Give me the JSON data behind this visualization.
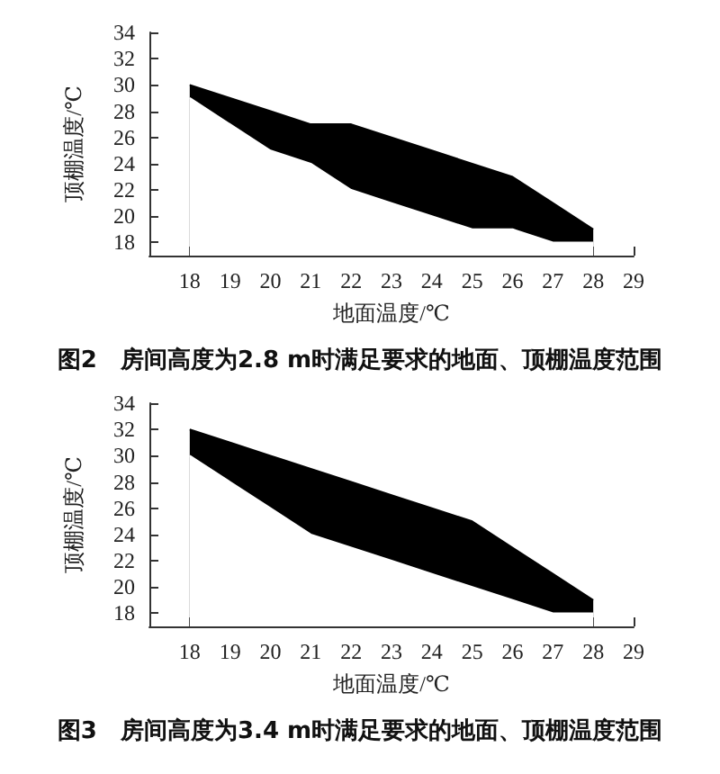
{
  "chart_data": [
    {
      "type": "area",
      "title": "图2　房间高度为2.8 m时满足要求的地面、顶棚温度范围",
      "xlabel": "地面温度/℃",
      "ylabel": "顶棚温度/℃",
      "x": [
        18,
        19,
        20,
        21,
        22,
        23,
        24,
        25,
        26,
        27,
        28
      ],
      "xlim": [
        17,
        29
      ],
      "xticks": [
        18,
        19,
        20,
        21,
        22,
        23,
        24,
        25,
        26,
        27,
        28,
        29
      ],
      "ylim": [
        17,
        34
      ],
      "yticks": [
        18,
        20,
        22,
        24,
        26,
        28,
        30,
        32,
        34
      ],
      "grid": false,
      "series": [
        {
          "color": "#000000",
          "values": [
            30,
            29,
            28,
            27,
            27,
            26,
            25,
            24,
            23,
            21,
            19
          ]
        },
        {
          "color": "#ffffff",
          "values": [
            29,
            27,
            25,
            24,
            22,
            21,
            20,
            19,
            19,
            18,
            18
          ]
        }
      ]
    },
    {
      "type": "area",
      "title": "图3　房间高度为3.4 m时满足要求的地面、顶棚温度范围",
      "xlabel": "地面温度/℃",
      "ylabel": "顶棚温度/℃",
      "x": [
        18,
        19,
        20,
        21,
        22,
        23,
        24,
        25,
        26,
        27,
        28
      ],
      "xlim": [
        17,
        29
      ],
      "xticks": [
        18,
        19,
        20,
        21,
        22,
        23,
        24,
        25,
        26,
        27,
        28,
        29
      ],
      "ylim": [
        17,
        34
      ],
      "yticks": [
        18,
        20,
        22,
        24,
        26,
        28,
        30,
        32,
        34
      ],
      "grid": false,
      "series": [
        {
          "color": "#000000",
          "values": [
            32,
            31,
            30,
            29,
            28,
            27,
            26,
            25,
            23,
            21,
            19
          ]
        },
        {
          "color": "#ffffff",
          "values": [
            30,
            28,
            26,
            24,
            23,
            22,
            21,
            20,
            19,
            18,
            18
          ]
        }
      ]
    }
  ]
}
